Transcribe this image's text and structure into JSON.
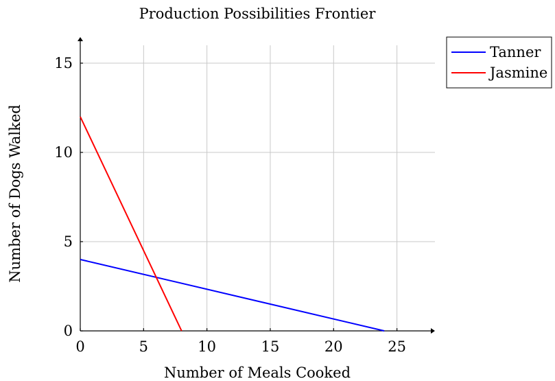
{
  "chart_data": {
    "type": "line",
    "title": "Production Possibilities Frontier",
    "xlabel": "Number of Meals Cooked",
    "ylabel": "Number of Dogs Walked",
    "xlim": [
      0,
      28
    ],
    "ylim": [
      0,
      16
    ],
    "xticks": [
      0,
      5,
      10,
      15,
      20,
      25
    ],
    "yticks": [
      0,
      5,
      10,
      15
    ],
    "grid": true,
    "legend_position": "outside-top-right",
    "series": [
      {
        "name": "Tanner",
        "color": "#0000ff",
        "x": [
          0,
          24
        ],
        "y": [
          4,
          0
        ]
      },
      {
        "name": "Jasmine",
        "color": "#ff0000",
        "x": [
          0,
          8
        ],
        "y": [
          12,
          0
        ]
      }
    ]
  }
}
